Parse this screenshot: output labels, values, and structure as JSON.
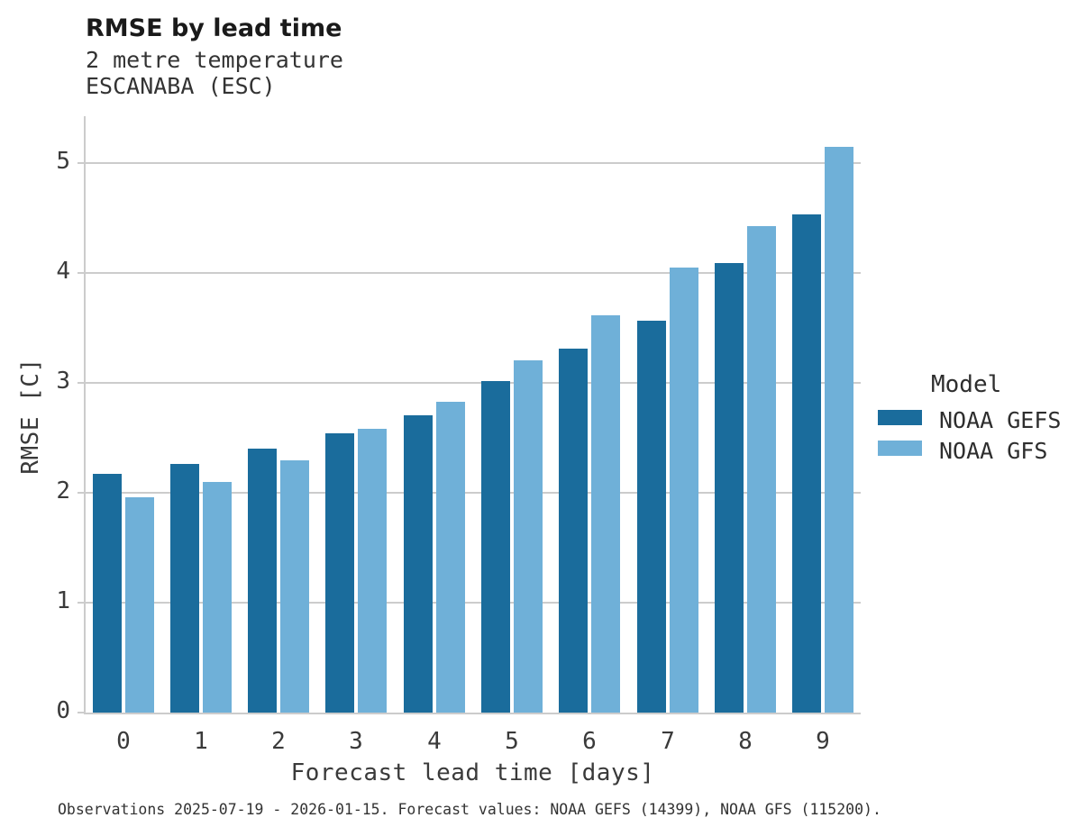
{
  "header": {
    "title": "RMSE by lead time",
    "subtitle_variable": "2 metre temperature",
    "subtitle_station": "ESCANABA (ESC)"
  },
  "legend": {
    "title": "Model",
    "items": [
      {
        "label": "NOAA GEFS",
        "color": "#1a6c9c"
      },
      {
        "label": "NOAA GFS",
        "color": "#6fb0d8"
      }
    ]
  },
  "footer": {
    "note": "Observations 2025-07-19 - 2026-01-15. Forecast values: NOAA GEFS (14399), NOAA GFS (115200)."
  },
  "colors": {
    "gefs_dark_blue": "#1a6c9c",
    "gfs_light_blue": "#6fb0d8",
    "grid_gray": "#cccccc",
    "text_dark": "#333333"
  },
  "chart_data": {
    "type": "bar",
    "title": "RMSE by lead time",
    "subtitle": [
      "2 metre temperature",
      "ESCANABA (ESC)"
    ],
    "xlabel": "Forecast lead time [days]",
    "ylabel": "RMSE [C]",
    "categories": [
      "0",
      "1",
      "2",
      "3",
      "4",
      "5",
      "6",
      "7",
      "8",
      "9"
    ],
    "series": [
      {
        "name": "NOAA GEFS",
        "color": "#1a6c9c",
        "values": [
          2.17,
          2.26,
          2.4,
          2.54,
          2.71,
          3.02,
          3.31,
          3.57,
          4.09,
          4.54
        ]
      },
      {
        "name": "NOAA GFS",
        "color": "#6fb0d8",
        "values": [
          1.96,
          2.1,
          2.3,
          2.58,
          2.83,
          3.21,
          3.62,
          4.05,
          4.43,
          5.15
        ]
      }
    ],
    "ylim": [
      0,
      5.43
    ],
    "yticks": [
      0,
      1,
      2,
      3,
      4,
      5
    ],
    "grid": true,
    "legend_title": "Model",
    "legend_position": "right"
  }
}
